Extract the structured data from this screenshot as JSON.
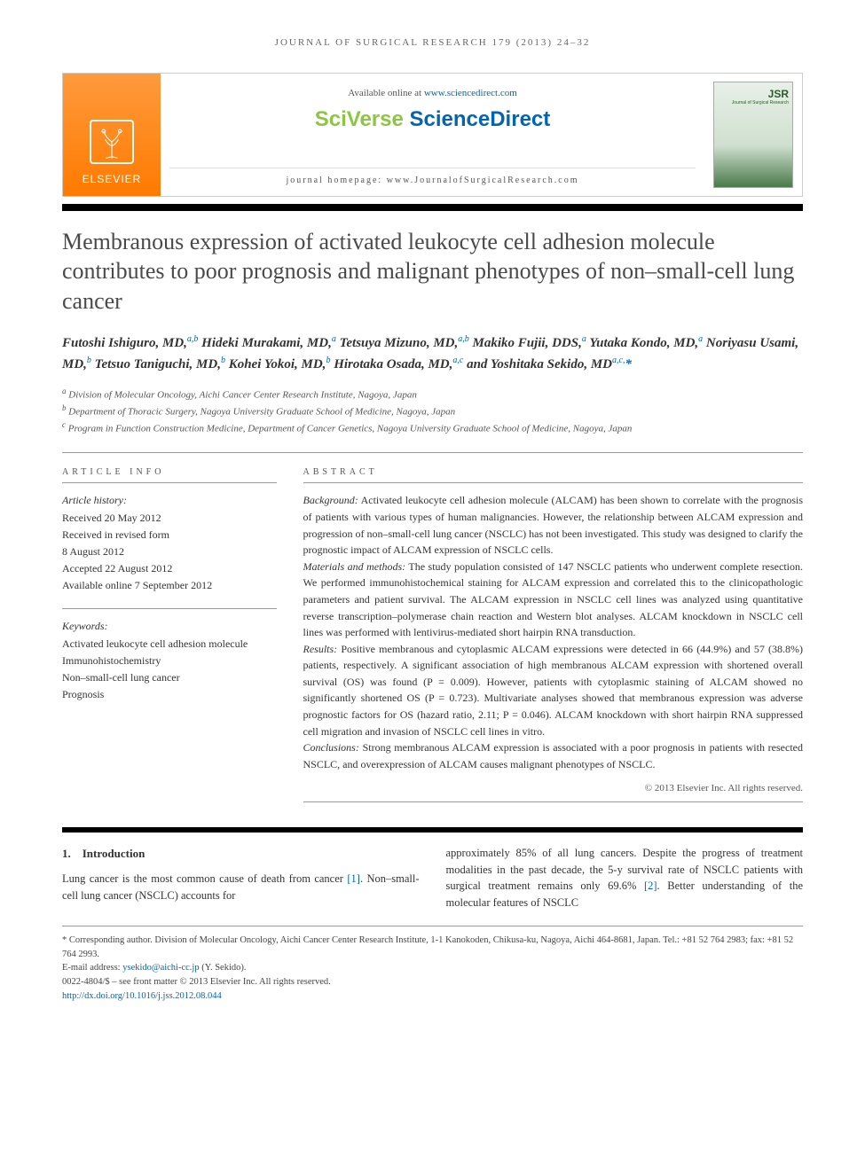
{
  "running_head": "JOURNAL OF SURGICAL RESEARCH 179 (2013) 24–32",
  "masthead": {
    "elsevier": "ELSEVIER",
    "available_prefix": "Available online at ",
    "available_link": "www.sciencedirect.com",
    "brand_sci": "SciVerse ",
    "brand_dir": "ScienceDirect",
    "homepage_prefix": "journal homepage: ",
    "homepage_url": "www.JournalofSurgicalResearch.com",
    "thumb_label": "JSR",
    "thumb_sub": "Journal of Surgical Research"
  },
  "title": "Membranous expression of activated leukocyte cell adhesion molecule contributes to poor prognosis and malignant phenotypes of non–small-cell lung cancer",
  "authors_html": "Futoshi Ishiguro, MD,<sup>a,b</sup> Hideki Murakami, MD,<sup>a</sup> Tetsuya Mizuno, MD,<sup>a,b</sup> Makiko Fujii, DDS,<sup>a</sup> Yutaka Kondo, MD,<sup>a</sup> Noriyasu Usami, MD,<sup>b</sup> Tetsuo Taniguchi, MD,<sup>b</sup> Kohei Yokoi, MD,<sup>b</sup> Hirotaka Osada, MD,<sup>a,c</sup> and Yoshitaka Sekido, MD<sup>a,c,</sup><span class='corr'>*</span>",
  "affiliations": {
    "a": "Division of Molecular Oncology, Aichi Cancer Center Research Institute, Nagoya, Japan",
    "b": "Department of Thoracic Surgery, Nagoya University Graduate School of Medicine, Nagoya, Japan",
    "c": "Program in Function Construction Medicine, Department of Cancer Genetics, Nagoya University Graduate School of Medicine, Nagoya, Japan"
  },
  "article_info_label": "ARTICLE INFO",
  "abstract_label": "ABSTRACT",
  "history": {
    "label": "Article history:",
    "received": "Received 20 May 2012",
    "revised1": "Received in revised form",
    "revised2": "8 August 2012",
    "accepted": "Accepted 22 August 2012",
    "online": "Available online 7 September 2012"
  },
  "keywords": {
    "label": "Keywords:",
    "items": [
      "Activated leukocyte cell adhesion molecule",
      "Immunohistochemistry",
      "Non–small-cell lung cancer",
      "Prognosis"
    ]
  },
  "abstract": {
    "background_label": "Background:",
    "background": " Activated leukocyte cell adhesion molecule (ALCAM) has been shown to correlate with the prognosis of patients with various types of human malignancies. However, the relationship between ALCAM expression and progression of non–small-cell lung cancer (NSCLC) has not been investigated. This study was designed to clarify the prognostic impact of ALCAM expression of NSCLC cells.",
    "methods_label": "Materials and methods:",
    "methods": " The study population consisted of 147 NSCLC patients who underwent complete resection. We performed immunohistochemical staining for ALCAM expression and correlated this to the clinicopathologic parameters and patient survival. The ALCAM expression in NSCLC cell lines was analyzed using quantitative reverse transcription–polymerase chain reaction and Western blot analyses. ALCAM knockdown in NSCLC cell lines was performed with lentivirus-mediated short hairpin RNA transduction.",
    "results_label": "Results:",
    "results": " Positive membranous and cytoplasmic ALCAM expressions were detected in 66 (44.9%) and 57 (38.8%) patients, respectively. A significant association of high membranous ALCAM expression with shortened overall survival (OS) was found (P = 0.009). However, patients with cytoplasmic staining of ALCAM showed no significantly shortened OS (P = 0.723). Multivariate analyses showed that membranous expression was adverse prognostic factors for OS (hazard ratio, 2.11; P = 0.046). ALCAM knockdown with short hairpin RNA suppressed cell migration and invasion of NSCLC cell lines in vitro.",
    "conclusions_label": "Conclusions:",
    "conclusions": " Strong membranous ALCAM expression is associated with a poor prognosis in patients with resected NSCLC, and overexpression of ALCAM causes malignant phenotypes of NSCLC."
  },
  "copyright": "© 2013 Elsevier Inc. All rights reserved.",
  "intro": {
    "heading": "1. Introduction",
    "left": "Lung cancer is the most common cause of death from cancer [1]. Non–small-cell lung cancer (NSCLC) accounts for",
    "right": "approximately 85% of all lung cancers. Despite the progress of treatment modalities in the past decade, the 5-y survival rate of NSCLC patients with surgical treatment remains only 69.6% [2]. Better understanding of the molecular features of NSCLC"
  },
  "footnotes": {
    "corr_label": "* Corresponding author.",
    "corr_text": " Division of Molecular Oncology, Aichi Cancer Center Research Institute, 1-1 Kanokoden, Chikusa-ku, Nagoya, Aichi 464-8681, Japan. Tel.: +81 52 764 2983; fax: +81 52 764 2993.",
    "email_label": "E-mail address: ",
    "email": "ysekido@aichi-cc.jp",
    "email_suffix": " (Y. Sekido).",
    "issn": "0022-4804/$ – see front matter © 2013 Elsevier Inc. All rights reserved.",
    "doi": "http://dx.doi.org/10.1016/j.jss.2012.08.044"
  },
  "colors": {
    "link": "#0066b3",
    "elsevier_orange": "#ff7a00",
    "title_gray": "#4a4a4a"
  }
}
